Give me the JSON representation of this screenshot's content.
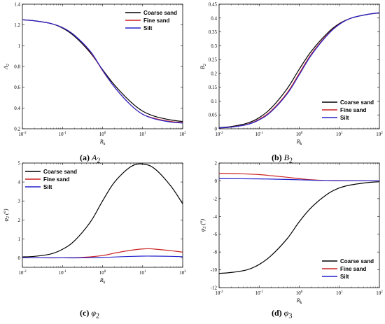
{
  "colors": {
    "coarse": "#000000",
    "fine": "#cc2222",
    "silt": "#2222cc"
  },
  "legend": [
    "Coarse sand",
    "Fine sand",
    "Silt"
  ],
  "captions": [
    {
      "tag": "(a)",
      "sym": "A",
      "sub": "2"
    },
    {
      "tag": "(b)",
      "sym": "B",
      "sub": "2"
    },
    {
      "tag": "(c)",
      "sym": "φ",
      "sub": "2"
    },
    {
      "tag": "(d)",
      "sym": "φ",
      "sub": "3"
    }
  ],
  "chart_data": [
    {
      "type": "line",
      "xlabel": "R",
      "xlabel_sub": "k",
      "ylabel": "A",
      "ylabel_sub": "2",
      "x_scale": "log",
      "xlim": [
        0.01,
        100
      ],
      "xticks": [
        "10",
        "10",
        "10",
        "10",
        "10"
      ],
      "xtick_exp": [
        "-2",
        "-1",
        "0",
        "1",
        "2"
      ],
      "ylim": [
        0.2,
        1.4
      ],
      "yticks": [
        "0.2",
        "0.4",
        "0.6",
        "0.8",
        "1",
        "1.2",
        "1.4"
      ],
      "legend_position": "top-right",
      "series": [
        {
          "name": "Coarse sand",
          "x": [
            0.01,
            0.02,
            0.05,
            0.1,
            0.2,
            0.5,
            1,
            2,
            5,
            10,
            20,
            50,
            100
          ],
          "y": [
            1.25,
            1.24,
            1.215,
            1.17,
            1.09,
            0.93,
            0.77,
            0.62,
            0.46,
            0.37,
            0.32,
            0.285,
            0.27
          ]
        },
        {
          "name": "Fine sand",
          "x": [
            0.01,
            0.02,
            0.05,
            0.1,
            0.2,
            0.5,
            1,
            2,
            5,
            10,
            20,
            50,
            100
          ],
          "y": [
            1.25,
            1.24,
            1.215,
            1.175,
            1.1,
            0.94,
            0.76,
            0.6,
            0.43,
            0.34,
            0.3,
            0.27,
            0.26
          ]
        },
        {
          "name": "Silt",
          "x": [
            0.01,
            0.02,
            0.05,
            0.1,
            0.2,
            0.5,
            1,
            2,
            5,
            10,
            20,
            50,
            100
          ],
          "y": [
            1.25,
            1.24,
            1.215,
            1.175,
            1.1,
            0.945,
            0.765,
            0.6,
            0.43,
            0.34,
            0.295,
            0.265,
            0.255
          ]
        }
      ]
    },
    {
      "type": "line",
      "xlabel": "R",
      "xlabel_sub": "k",
      "ylabel": "B",
      "ylabel_sub": "2",
      "x_scale": "log",
      "xlim": [
        0.01,
        100
      ],
      "xticks": [
        "10",
        "10",
        "10",
        "10",
        "10"
      ],
      "xtick_exp": [
        "-2",
        "-1",
        "0",
        "1",
        "2"
      ],
      "ylim": [
        0,
        0.45
      ],
      "yticks": [
        "0",
        "0.05",
        "0.1",
        "0.15",
        "0.2",
        "0.25",
        "0.3",
        "0.35",
        "0.4",
        "0.45"
      ],
      "legend_position": "bottom-right",
      "series": [
        {
          "name": "Coarse sand",
          "x": [
            0.01,
            0.02,
            0.05,
            0.1,
            0.2,
            0.5,
            1,
            2,
            5,
            10,
            20,
            50,
            100
          ],
          "y": [
            0.004,
            0.008,
            0.02,
            0.04,
            0.075,
            0.145,
            0.215,
            0.28,
            0.345,
            0.38,
            0.4,
            0.413,
            0.418
          ]
        },
        {
          "name": "Fine sand",
          "x": [
            0.01,
            0.02,
            0.05,
            0.1,
            0.2,
            0.5,
            1,
            2,
            5,
            10,
            20,
            50,
            100
          ],
          "y": [
            0.003,
            0.006,
            0.016,
            0.034,
            0.065,
            0.13,
            0.2,
            0.27,
            0.34,
            0.378,
            0.4,
            0.413,
            0.419
          ]
        },
        {
          "name": "Silt",
          "x": [
            0.01,
            0.02,
            0.05,
            0.1,
            0.2,
            0.5,
            1,
            2,
            5,
            10,
            20,
            50,
            100
          ],
          "y": [
            0.003,
            0.006,
            0.015,
            0.032,
            0.062,
            0.126,
            0.195,
            0.266,
            0.338,
            0.377,
            0.4,
            0.413,
            0.419
          ]
        }
      ]
    },
    {
      "type": "line",
      "xlabel": "R",
      "xlabel_sub": "k",
      "ylabel": "φ",
      "ylabel_sub": "2",
      "ylabel_unit": " (°)",
      "x_scale": "log",
      "xlim": [
        0.01,
        100
      ],
      "xticks": [
        "10",
        "10",
        "10",
        "10",
        "10"
      ],
      "xtick_exp": [
        "-2",
        "-1",
        "0",
        "1",
        "2"
      ],
      "ylim": [
        -0.5,
        5
      ],
      "yticks": [
        "0",
        "1",
        "2",
        "3",
        "4",
        "5"
      ],
      "ytick_values": [
        0,
        1,
        2,
        3,
        4,
        5
      ],
      "legend_position": "top-left",
      "series": [
        {
          "name": "Coarse sand",
          "x": [
            0.01,
            0.02,
            0.05,
            0.1,
            0.2,
            0.5,
            1,
            2,
            5,
            10,
            20,
            50,
            100
          ],
          "y": [
            0.05,
            0.08,
            0.2,
            0.45,
            0.9,
            1.9,
            3.0,
            4.0,
            4.8,
            4.95,
            4.7,
            3.8,
            2.85
          ]
        },
        {
          "name": "Fine sand",
          "x": [
            0.01,
            0.03,
            0.1,
            0.3,
            1,
            2,
            5,
            10,
            15,
            20,
            50,
            100
          ],
          "y": [
            0.0,
            0.0,
            0.0,
            0.02,
            0.12,
            0.25,
            0.4,
            0.47,
            0.48,
            0.46,
            0.38,
            0.3
          ]
        },
        {
          "name": "Silt",
          "x": [
            0.01,
            0.1,
            0.3,
            1,
            3,
            10,
            20,
            50,
            100
          ],
          "y": [
            0.0,
            0.0,
            0.0,
            0.02,
            0.06,
            0.09,
            0.09,
            0.08,
            0.06
          ]
        }
      ]
    },
    {
      "type": "line",
      "xlabel": "R",
      "xlabel_sub": "k",
      "ylabel": "φ",
      "ylabel_sub": "3",
      "ylabel_unit": " (°)",
      "x_scale": "log",
      "xlim": [
        0.01,
        100
      ],
      "xticks": [
        "10",
        "10",
        "10",
        "10",
        "10"
      ],
      "xtick_exp": [
        "-2",
        "-1",
        "0",
        "1",
        "2"
      ],
      "ylim": [
        -12,
        2
      ],
      "yticks": [
        "-12",
        "-10",
        "-8",
        "-6",
        "-4",
        "-2",
        "0",
        "2"
      ],
      "legend_position": "bottom-right",
      "series": [
        {
          "name": "Coarse sand",
          "x": [
            0.01,
            0.02,
            0.05,
            0.1,
            0.2,
            0.5,
            1,
            2,
            5,
            10,
            20,
            50,
            100
          ],
          "y": [
            -10.4,
            -10.3,
            -10.0,
            -9.4,
            -8.4,
            -6.5,
            -4.6,
            -3.0,
            -1.5,
            -0.8,
            -0.45,
            -0.2,
            -0.1
          ]
        },
        {
          "name": "Fine sand",
          "x": [
            0.01,
            0.03,
            0.1,
            0.3,
            0.5,
            1,
            2,
            5,
            10,
            100
          ],
          "y": [
            0.85,
            0.8,
            0.7,
            0.5,
            0.4,
            0.25,
            0.12,
            0.03,
            0.0,
            0.0
          ]
        },
        {
          "name": "Silt",
          "x": [
            0.01,
            0.1,
            0.3,
            1,
            3,
            10,
            100
          ],
          "y": [
            0.25,
            0.22,
            0.18,
            0.12,
            0.05,
            0.02,
            0.0
          ]
        }
      ]
    }
  ]
}
